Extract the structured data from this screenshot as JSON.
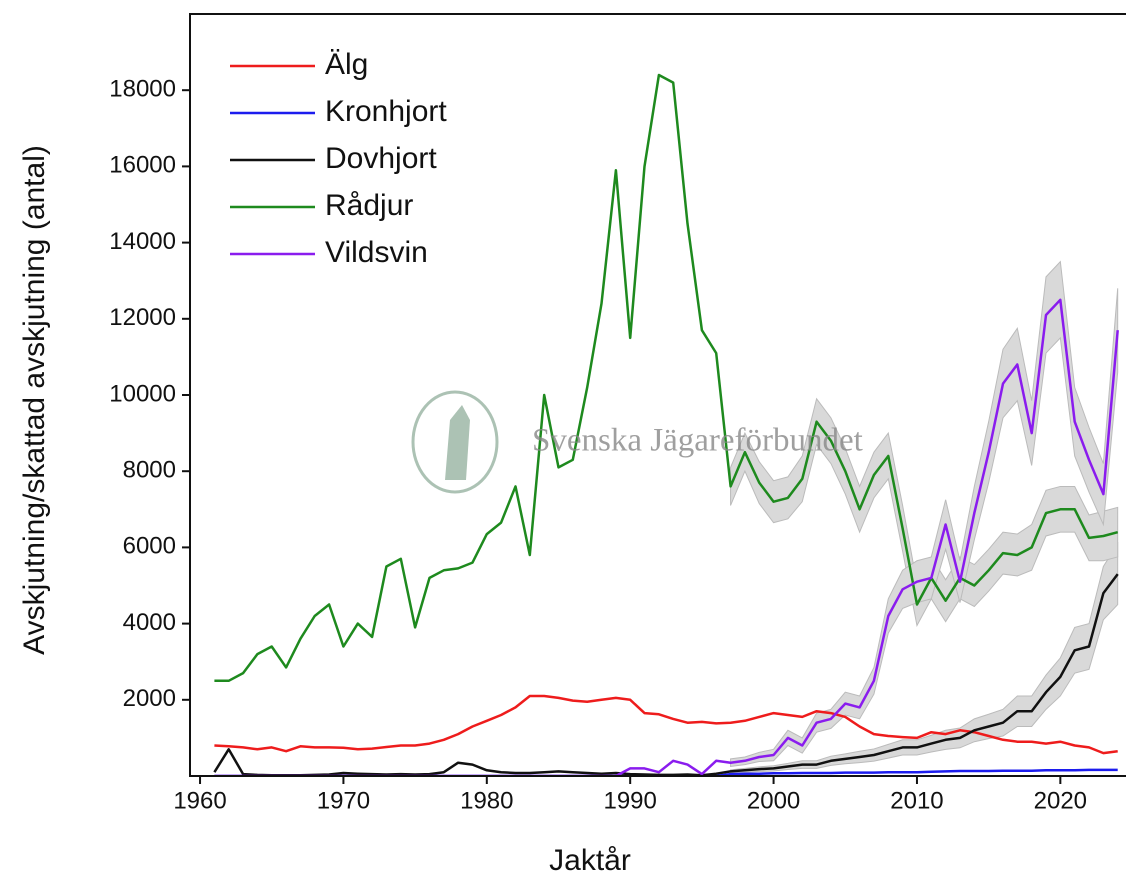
{
  "chart_data": {
    "type": "line",
    "xlabel": "Jaktår",
    "ylabel": "Avskjutning/skattad avskjutning (antal)",
    "annotation": "Svenska Jägareförbundet",
    "x": [
      1961,
      1962,
      1963,
      1964,
      1965,
      1966,
      1967,
      1968,
      1969,
      1970,
      1971,
      1972,
      1973,
      1974,
      1975,
      1976,
      1977,
      1978,
      1979,
      1980,
      1981,
      1982,
      1983,
      1984,
      1985,
      1986,
      1987,
      1988,
      1989,
      1990,
      1991,
      1992,
      1993,
      1994,
      1995,
      1996,
      1997,
      1998,
      1999,
      2000,
      2001,
      2002,
      2003,
      2004,
      2005,
      2006,
      2007,
      2008,
      2009,
      2010,
      2011,
      2012,
      2013,
      2014,
      2015,
      2016,
      2017,
      2018,
      2019,
      2020,
      2021,
      2022,
      2023,
      2024
    ],
    "xlim": [
      1959.3,
      2024.3
    ],
    "xticks": [
      1960,
      1970,
      1980,
      1990,
      2000,
      2010,
      2020
    ],
    "ylim": [
      0,
      20000
    ],
    "yticks": [
      2000,
      4000,
      6000,
      8000,
      10000,
      12000,
      14000,
      16000,
      18000
    ],
    "legend": "upper left",
    "band_color": "#d9d9d9",
    "series": [
      {
        "name": "Älg",
        "color": "#ee1c1c",
        "values": [
          800,
          780,
          750,
          700,
          750,
          650,
          780,
          750,
          750,
          740,
          700,
          720,
          760,
          800,
          800,
          850,
          950,
          1100,
          1300,
          1450,
          1600,
          1800,
          2100,
          2100,
          2050,
          1980,
          1950,
          2000,
          2050,
          2000,
          1650,
          1620,
          1500,
          1400,
          1420,
          1380,
          1400,
          1450,
          1550,
          1650,
          1600,
          1550,
          1700,
          1650,
          1550,
          1300,
          1100,
          1050,
          1020,
          1000,
          1150,
          1100,
          1200,
          1150,
          1050,
          950,
          900,
          900,
          850,
          900,
          800,
          750,
          600,
          650
        ]
      },
      {
        "name": "Kronhjort",
        "color": "#1c1cee",
        "values": [
          0,
          0,
          0,
          0,
          0,
          0,
          0,
          0,
          0,
          0,
          0,
          0,
          0,
          0,
          0,
          0,
          0,
          0,
          0,
          0,
          0,
          0,
          0,
          0,
          0,
          0,
          0,
          0,
          0,
          0,
          0,
          0,
          0,
          0,
          0,
          0,
          50,
          60,
          60,
          70,
          70,
          80,
          80,
          80,
          90,
          90,
          90,
          100,
          100,
          100,
          110,
          120,
          130,
          130,
          130,
          140,
          140,
          140,
          150,
          150,
          150,
          160,
          160,
          160
        ]
      },
      {
        "name": "Dovhjort",
        "color": "#111111",
        "values": [
          100,
          700,
          50,
          30,
          20,
          20,
          20,
          30,
          40,
          80,
          60,
          50,
          40,
          50,
          40,
          50,
          100,
          350,
          300,
          150,
          100,
          80,
          80,
          100,
          120,
          100,
          80,
          60,
          80,
          50,
          40,
          30,
          30,
          40,
          20,
          60,
          120,
          150,
          180,
          200,
          250,
          300,
          300,
          400,
          450,
          500,
          550,
          650,
          750,
          750,
          850,
          950,
          1000,
          1200,
          1300,
          1400,
          1700,
          1700,
          2200,
          2600,
          3300,
          3400,
          4800,
          5300
        ],
        "errors": [
          null,
          null,
          null,
          null,
          null,
          null,
          null,
          null,
          null,
          null,
          null,
          null,
          null,
          null,
          null,
          null,
          null,
          null,
          null,
          null,
          null,
          null,
          null,
          null,
          null,
          null,
          null,
          null,
          null,
          null,
          null,
          null,
          null,
          null,
          null,
          null,
          40,
          50,
          60,
          70,
          80,
          100,
          100,
          120,
          130,
          150,
          160,
          180,
          200,
          200,
          220,
          250,
          260,
          300,
          320,
          350,
          400,
          400,
          450,
          500,
          600,
          600,
          700,
          800
        ]
      },
      {
        "name": "Rådjur",
        "color": "#1e8a1e",
        "values": [
          2500,
          2500,
          2700,
          3200,
          3400,
          2850,
          3600,
          4200,
          4500,
          3400,
          4000,
          3650,
          5500,
          5700,
          3900,
          5200,
          5400,
          5450,
          5600,
          6350,
          6650,
          7600,
          5800,
          10000,
          8100,
          8300,
          10200,
          12400,
          15900,
          11500,
          16000,
          18400,
          18200,
          14500,
          11700,
          11100,
          7600,
          8500,
          7700,
          7200,
          7300,
          7800,
          9300,
          8800,
          8000,
          7000,
          7900,
          8400,
          6500,
          4500,
          5200,
          4600,
          5200,
          5000,
          5400,
          5850,
          5800,
          6000,
          6900,
          7000,
          7000,
          6250,
          6300,
          6400
        ],
        "errors": [
          null,
          null,
          null,
          null,
          null,
          null,
          null,
          null,
          null,
          null,
          null,
          null,
          null,
          null,
          null,
          null,
          null,
          null,
          null,
          null,
          null,
          null,
          null,
          null,
          null,
          null,
          null,
          null,
          null,
          null,
          null,
          null,
          null,
          null,
          null,
          null,
          500,
          500,
          550,
          550,
          550,
          600,
          600,
          600,
          600,
          600,
          600,
          600,
          600,
          550,
          550,
          550,
          550,
          550,
          550,
          550,
          550,
          600,
          600,
          600,
          600,
          600,
          650,
          650
        ]
      },
      {
        "name": "Vildsvin",
        "color": "#8a1cee",
        "values": [
          0,
          0,
          0,
          0,
          0,
          0,
          0,
          0,
          0,
          0,
          0,
          0,
          0,
          0,
          0,
          0,
          0,
          0,
          0,
          0,
          0,
          0,
          0,
          0,
          0,
          0,
          0,
          0,
          0,
          200,
          200,
          100,
          400,
          300,
          50,
          400,
          350,
          400,
          500,
          550,
          1000,
          800,
          1400,
          1500,
          1900,
          1800,
          2500,
          4200,
          4900,
          5100,
          5200,
          6600,
          5100,
          6900,
          8500,
          10300,
          10800,
          9000,
          12100,
          12500,
          9300,
          8300,
          7400,
          11700
        ],
        "errors": [
          null,
          null,
          null,
          null,
          null,
          null,
          null,
          null,
          null,
          null,
          null,
          null,
          null,
          null,
          null,
          null,
          null,
          null,
          null,
          null,
          null,
          null,
          null,
          null,
          null,
          null,
          null,
          null,
          null,
          null,
          null,
          null,
          null,
          null,
          null,
          null,
          100,
          100,
          120,
          150,
          200,
          200,
          250,
          250,
          300,
          300,
          350,
          450,
          500,
          550,
          550,
          650,
          550,
          700,
          800,
          900,
          950,
          850,
          1000,
          1000,
          900,
          850,
          800,
          1100
        ]
      }
    ]
  }
}
